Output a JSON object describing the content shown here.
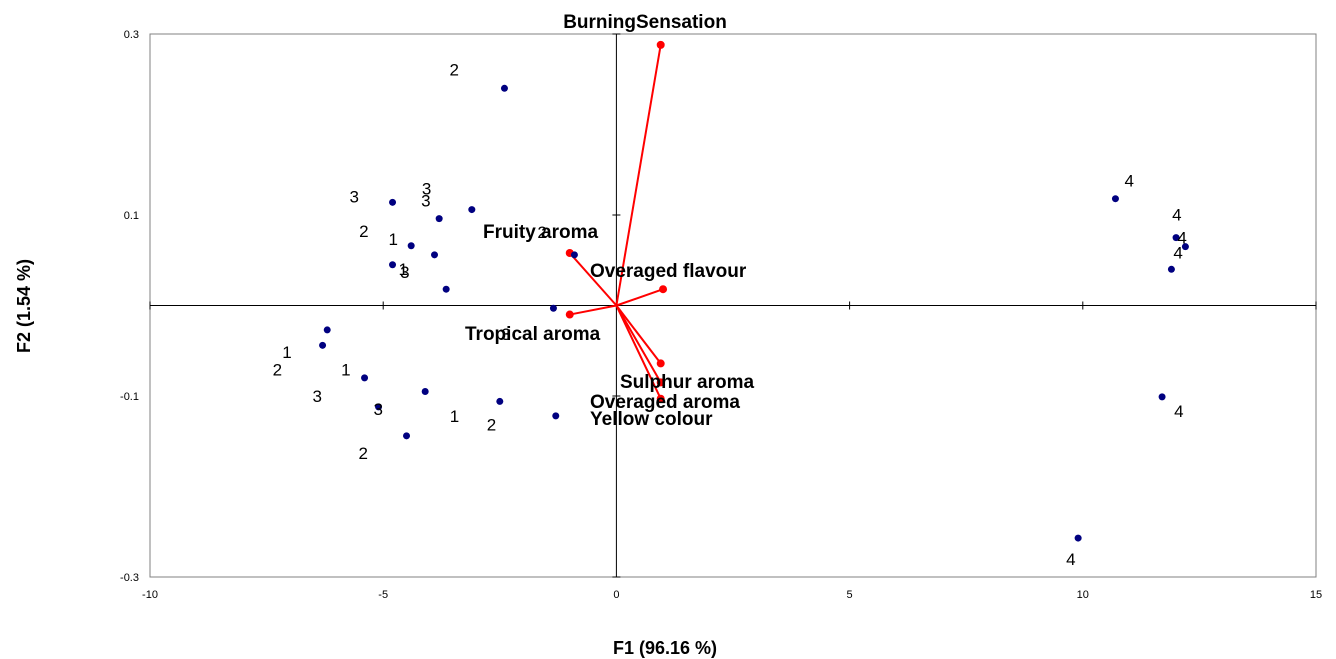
{
  "chart_data": {
    "type": "scatter",
    "xlabel": "F1 (96.16 %)",
    "ylabel": "F2 (1.54 %)",
    "xlim": [
      -10,
      15
    ],
    "ylim": [
      -0.3,
      0.3
    ],
    "x_ticks": [
      -10,
      -5,
      0,
      5,
      10,
      15
    ],
    "y_ticks": [
      -0.3,
      -0.1,
      0.1,
      0.3
    ],
    "x_tick_labels": [
      "-10",
      "-5",
      "0",
      "5",
      "10",
      "15"
    ],
    "y_tick_labels": [
      "-0.3",
      "-0.1",
      "0.1",
      "0.3"
    ],
    "grid": false,
    "point_color": "#000080",
    "vector_color": "#ff0000",
    "observations": [
      {
        "label": "2",
        "x": -2.4,
        "y": 0.24
      },
      {
        "label": "1",
        "x": -4.8,
        "y": 0.045
      },
      {
        "label": "3",
        "x": -4.8,
        "y": 0.114
      },
      {
        "label": "3",
        "x": -3.8,
        "y": 0.096
      },
      {
        "label": "3",
        "x": -3.1,
        "y": 0.106
      },
      {
        "label": "2",
        "x": -4.4,
        "y": 0.066
      },
      {
        "label": "1",
        "x": -3.9,
        "y": 0.056
      },
      {
        "label": "3",
        "x": -3.65,
        "y": 0.018
      },
      {
        "label": "2",
        "x": -0.9,
        "y": 0.056
      },
      {
        "label": "3",
        "x": -1.35,
        "y": -0.003
      },
      {
        "label": "1",
        "x": -6.2,
        "y": -0.027
      },
      {
        "label": "2",
        "x": -6.3,
        "y": -0.044
      },
      {
        "label": "3",
        "x": -5.4,
        "y": -0.08
      },
      {
        "label": "1",
        "x": -4.1,
        "y": -0.095
      },
      {
        "label": "2",
        "x": -2.5,
        "y": -0.106
      },
      {
        "label": "3",
        "x": -5.1,
        "y": -0.112
      },
      {
        "label": "1",
        "x": -1.3,
        "y": -0.122
      },
      {
        "label": "2",
        "x": -4.5,
        "y": -0.144
      },
      {
        "label": "4",
        "x": 10.7,
        "y": 0.118
      },
      {
        "label": "4",
        "x": 12.0,
        "y": 0.075
      },
      {
        "label": "4",
        "x": 12.2,
        "y": 0.065
      },
      {
        "label": "4",
        "x": 11.9,
        "y": 0.04
      },
      {
        "label": "4",
        "x": 11.7,
        "y": -0.101
      },
      {
        "label": "4",
        "x": 9.9,
        "y": -0.257
      }
    ],
    "variables": [
      {
        "name": "BurningSensation",
        "x": 0.95,
        "y": 0.288
      },
      {
        "name": "Fruity aroma",
        "x": -1.0,
        "y": 0.058
      },
      {
        "name": "Overaged flavour",
        "x": 1.0,
        "y": 0.018
      },
      {
        "name": "Tropical aroma",
        "x": -1.0,
        "y": -0.01
      },
      {
        "name": "Sulphur aroma",
        "x": 0.95,
        "y": -0.064
      },
      {
        "name": "Overaged aroma",
        "x": 0.95,
        "y": -0.085
      },
      {
        "name": "Yellow colour",
        "x": 0.95,
        "y": -0.103
      }
    ]
  }
}
